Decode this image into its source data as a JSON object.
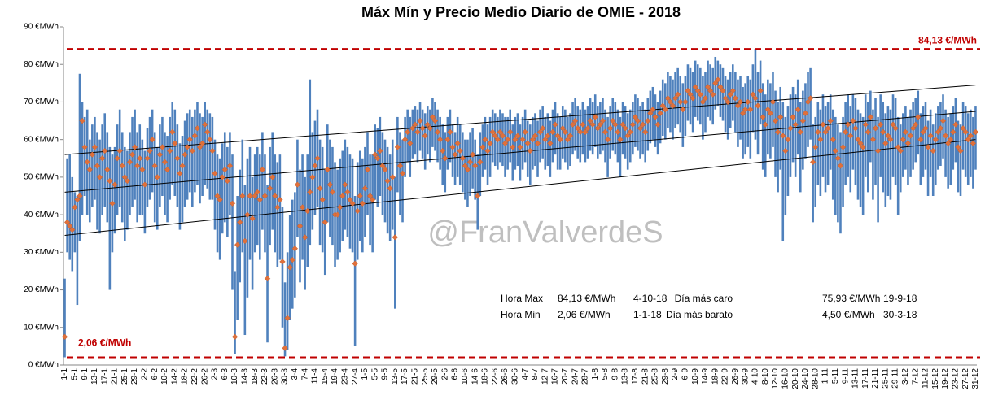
{
  "chart_data": {
    "type": "range-bar",
    "title": "Máx Mín y Precio Medio Diario de OMIE - 2018",
    "categories": [
      "1-1",
      null,
      null,
      null,
      "5-1",
      null,
      null,
      null,
      "9-1",
      null,
      null,
      null,
      "13-1",
      null,
      null,
      null,
      "17-1",
      null,
      null,
      null,
      "21-1",
      null,
      null,
      null,
      "25-1",
      null,
      null,
      null,
      "29-1",
      null,
      null,
      null,
      "2-2",
      null,
      null,
      null,
      "6-2",
      null,
      null,
      null,
      "10-2",
      null,
      null,
      null,
      "14-2",
      null,
      null,
      null,
      "18-2",
      null,
      null,
      null,
      "22-2",
      null,
      null,
      null,
      "26-2",
      null,
      null,
      null,
      "2-3",
      null,
      null,
      null,
      "6-3",
      null,
      null,
      null,
      "10-3",
      null,
      null,
      null,
      "14-3",
      null,
      null,
      null,
      "18-3",
      null,
      null,
      null,
      "22-3",
      null,
      null,
      null,
      "26-3",
      null,
      null,
      null,
      "30-3",
      null,
      null,
      null,
      "3-4",
      null,
      null,
      null,
      "7-4",
      null,
      null,
      null,
      "11-4",
      null,
      null,
      null,
      "15-4",
      null,
      null,
      null,
      "19-4",
      null,
      null,
      null,
      "23-4",
      null,
      null,
      null,
      "27-4",
      null,
      null,
      null,
      "1-5",
      null,
      null,
      null,
      "5-5",
      null,
      null,
      null,
      "9-5",
      null,
      null,
      null,
      "13-5",
      null,
      null,
      null,
      "17-5",
      null,
      null,
      null,
      "21-5",
      null,
      null,
      null,
      "25-5",
      null,
      null,
      null,
      "29-5",
      null,
      null,
      null,
      "2-6",
      null,
      null,
      null,
      "6-6",
      null,
      null,
      null,
      "10-6",
      null,
      null,
      null,
      "14-6",
      null,
      null,
      null,
      "18-6",
      null,
      null,
      null,
      "22-6",
      null,
      null,
      null,
      "26-6",
      null,
      null,
      null,
      "30-6",
      null,
      null,
      null,
      "4-7",
      null,
      null,
      null,
      "8-7",
      null,
      null,
      null,
      "12-7",
      null,
      null,
      null,
      "16-7",
      null,
      null,
      null,
      "20-7",
      null,
      null,
      null,
      "24-7",
      null,
      null,
      null,
      "28-7",
      null,
      null,
      null,
      "1-8",
      null,
      null,
      null,
      "5-8",
      null,
      null,
      null,
      "9-8",
      null,
      null,
      null,
      "13-8",
      null,
      null,
      null,
      "17-8",
      null,
      null,
      null,
      "21-8",
      null,
      null,
      null,
      "25-8",
      null,
      null,
      null,
      "29-8",
      null,
      null,
      null,
      "2-9",
      null,
      null,
      null,
      "6-9",
      null,
      null,
      null,
      "10-9",
      null,
      null,
      null,
      "14-9",
      null,
      null,
      null,
      "18-9",
      null,
      null,
      null,
      "22-9",
      null,
      null,
      null,
      "26-9",
      null,
      null,
      null,
      "30-9",
      null,
      null,
      null,
      "4-10",
      null,
      null,
      null,
      "8-10",
      null,
      null,
      null,
      "12-10",
      null,
      null,
      null,
      "16-10",
      null,
      null,
      null,
      "20-10",
      null,
      null,
      null,
      "24-10",
      null,
      null,
      null,
      "28-10",
      null,
      null,
      null,
      "1-11",
      null,
      null,
      null,
      "5-11",
      null,
      null,
      null,
      "9-11",
      null,
      null,
      null,
      "13-11",
      null,
      null,
      null,
      "17-11",
      null,
      null,
      null,
      "21-11",
      null,
      null,
      null,
      "25-11",
      null,
      null,
      null,
      "29-11",
      null,
      null,
      null,
      "3-12",
      null,
      null,
      null,
      "7-12",
      null,
      null,
      null,
      "11-12",
      null,
      null,
      null,
      "15-12",
      null,
      null,
      null,
      "19-12",
      null,
      null,
      null,
      "23-12",
      null,
      null,
      null,
      "27-12",
      null,
      null,
      null,
      "31-12"
    ],
    "ranges": {
      "color": "#4f81bd",
      "high": [
        23,
        55,
        56,
        50,
        46,
        45,
        77.5,
        70,
        66,
        68,
        60,
        64,
        66,
        62,
        60,
        64,
        67,
        62,
        58,
        56,
        58,
        64,
        68,
        62,
        58,
        57,
        62,
        66,
        68,
        62,
        64,
        60,
        57,
        63,
        66,
        68,
        62,
        58,
        64,
        66,
        62,
        61,
        66,
        70,
        68,
        64,
        59,
        61,
        65,
        67,
        68,
        66,
        68,
        70,
        67,
        66,
        70,
        68,
        67,
        66,
        60,
        56,
        55,
        59,
        62,
        58,
        62,
        56,
        25,
        45,
        52,
        60,
        48,
        55,
        58,
        50,
        56,
        58,
        56,
        62,
        56,
        48,
        58,
        62,
        56,
        54,
        56,
        42,
        22,
        30,
        40,
        44,
        46,
        60,
        52,
        56,
        50,
        56,
        76,
        62,
        65,
        68,
        60,
        58,
        52,
        64,
        60,
        58,
        54,
        52,
        55,
        57,
        60,
        58,
        56,
        55,
        45,
        54,
        57,
        55,
        58,
        62,
        56,
        56,
        64,
        63,
        66,
        62,
        60,
        58,
        56,
        60,
        50,
        66,
        62,
        60,
        66,
        68,
        66,
        68,
        69,
        68,
        70,
        68,
        67,
        69,
        68,
        71,
        70,
        68,
        66,
        64,
        62,
        66,
        68,
        64,
        62,
        66,
        64,
        62,
        60,
        60,
        62,
        63,
        60,
        56,
        62,
        64,
        66,
        64,
        66,
        68,
        67,
        66,
        68,
        67,
        66,
        66,
        68,
        64,
        66,
        67,
        64,
        66,
        68,
        65,
        64,
        66,
        67,
        65,
        68,
        69,
        66,
        67,
        65,
        68,
        70,
        67,
        66,
        69,
        68,
        66,
        67,
        70,
        71,
        69,
        68,
        70,
        68,
        69,
        71,
        70,
        72,
        69,
        70,
        71,
        68,
        66,
        69,
        71,
        70,
        68,
        66,
        70,
        69,
        67,
        68,
        70,
        72,
        71,
        69,
        70,
        68,
        71,
        73,
        74,
        72,
        70,
        73,
        76,
        75,
        78,
        77,
        76,
        78,
        79,
        77,
        75,
        77,
        80,
        79,
        78,
        81,
        80,
        79,
        77,
        78,
        81,
        80,
        79,
        82,
        81,
        80,
        79,
        77,
        76,
        78,
        80,
        78,
        76,
        77,
        74,
        75,
        77,
        76,
        80,
        84.13,
        78,
        81,
        75,
        72,
        76,
        75,
        78,
        73,
        70,
        74,
        70,
        66,
        69,
        72,
        74,
        72,
        76,
        70,
        73,
        75,
        78,
        79,
        64,
        66,
        70,
        68,
        72,
        69,
        70,
        72,
        68,
        66,
        64,
        62,
        66,
        70,
        72,
        69,
        72,
        71,
        68,
        67,
        66,
        72,
        70,
        73,
        68,
        71,
        66,
        72,
        70,
        67,
        69,
        68,
        72,
        71,
        66,
        64,
        67,
        69,
        66,
        68,
        70,
        71,
        73,
        67,
        69,
        70,
        65,
        68,
        64,
        67,
        69,
        70,
        72,
        68,
        66,
        67,
        69,
        71,
        65,
        64,
        70,
        69,
        67,
        68,
        66,
        69
      ],
      "low": [
        2.06,
        30,
        28,
        25,
        30,
        16,
        33,
        40,
        45,
        40,
        38,
        42,
        44,
        36,
        35,
        40,
        42,
        38,
        20,
        30,
        35,
        40,
        42,
        38,
        33,
        36,
        40,
        42,
        44,
        38,
        40,
        40,
        35,
        42,
        44,
        46,
        38,
        36,
        42,
        45,
        40,
        38,
        44,
        48,
        45,
        42,
        36,
        38,
        42,
        44,
        46,
        42,
        46,
        48,
        43,
        45,
        48,
        47,
        44,
        44,
        36,
        30,
        28,
        35,
        38,
        34,
        40,
        20,
        3,
        12,
        22,
        30,
        8,
        18,
        28,
        20,
        30,
        32,
        28,
        36,
        30,
        6,
        32,
        36,
        30,
        26,
        28,
        10,
        2.3,
        4,
        12,
        15,
        18,
        34,
        22,
        28,
        20,
        26,
        32,
        36,
        40,
        42,
        32,
        30,
        24,
        38,
        34,
        32,
        26,
        28,
        30,
        33,
        36,
        34,
        31,
        30,
        5,
        28,
        33,
        30,
        34,
        40,
        32,
        30,
        44,
        42,
        45,
        40,
        38,
        35,
        33,
        36,
        15,
        46,
        40,
        38,
        50,
        54,
        50,
        55,
        56,
        54,
        57,
        55,
        52,
        56,
        54,
        58,
        57,
        54,
        52,
        48,
        46,
        52,
        54,
        50,
        48,
        50,
        48,
        46,
        44,
        42,
        45,
        47,
        44,
        36,
        45,
        50,
        52,
        48,
        50,
        54,
        53,
        52,
        54,
        53,
        50,
        52,
        54,
        49,
        52,
        53,
        49,
        52,
        54,
        50,
        48,
        52,
        53,
        50,
        54,
        55,
        52,
        53,
        50,
        54,
        56,
        52,
        52,
        55,
        54,
        52,
        53,
        56,
        57,
        55,
        54,
        56,
        54,
        55,
        57,
        56,
        58,
        55,
        56,
        57,
        54,
        50,
        55,
        57,
        56,
        54,
        50,
        56,
        55,
        52,
        54,
        56,
        58,
        57,
        55,
        56,
        54,
        57,
        59,
        60,
        58,
        56,
        59,
        61,
        60,
        63,
        62,
        60,
        63,
        64,
        62,
        58,
        61,
        65,
        64,
        62,
        66,
        65,
        64,
        60,
        62,
        66,
        65,
        64,
        68,
        69,
        66,
        65,
        62,
        60,
        63,
        65,
        62,
        58,
        60,
        55,
        56,
        58,
        55,
        62,
        60,
        56,
        64,
        52,
        50,
        56,
        55,
        58,
        50,
        46,
        52,
        33,
        40,
        45,
        50,
        54,
        50,
        56,
        46,
        52,
        55,
        58,
        60,
        38,
        42,
        48,
        45,
        50,
        46,
        48,
        52,
        44,
        40,
        38,
        35,
        42,
        48,
        50,
        46,
        52,
        48,
        44,
        42,
        40,
        50,
        46,
        54,
        44,
        48,
        38,
        50,
        46,
        42,
        45,
        44,
        50,
        48,
        40,
        46,
        50,
        52,
        48,
        50,
        52,
        54,
        56,
        48,
        50,
        52,
        45,
        50,
        45,
        48,
        52,
        53,
        55,
        50,
        47,
        48,
        52,
        54,
        46,
        45,
        52,
        50,
        48,
        50,
        47,
        52
      ]
    },
    "mean": {
      "color": "#e0703a",
      "values": [
        7.5,
        38,
        37,
        36,
        42,
        44,
        45,
        65,
        58,
        54,
        52,
        56,
        58,
        53,
        50,
        55,
        57,
        52,
        49,
        43,
        48,
        55,
        57,
        53,
        50,
        49,
        54,
        56,
        58,
        53,
        55,
        52,
        48,
        55,
        57,
        60,
        53,
        50,
        56,
        58,
        54,
        52,
        57,
        62,
        59,
        55,
        51,
        53,
        56,
        58,
        60,
        57,
        61,
        63,
        58,
        59,
        64,
        62,
        60,
        57,
        51,
        45,
        44,
        50,
        52,
        49,
        53,
        43,
        7.5,
        32,
        38,
        45,
        33,
        40,
        45,
        39,
        45,
        46,
        44,
        52,
        45,
        23,
        47,
        50,
        45,
        42,
        44,
        27.5,
        4.5,
        12.5,
        26,
        28,
        31,
        48,
        37,
        42,
        34,
        41,
        46,
        50,
        53,
        55,
        47,
        44,
        38,
        52,
        48,
        46,
        40,
        40,
        42,
        45,
        48,
        46,
        44,
        43,
        27,
        41,
        45,
        43,
        47,
        52,
        45,
        44,
        56,
        55,
        57,
        53,
        52,
        49,
        47,
        50,
        34,
        58,
        53,
        51,
        60,
        62,
        59,
        63,
        64,
        62,
        65,
        63,
        61,
        64,
        63,
        66,
        65,
        62,
        60,
        57,
        55,
        60,
        62,
        58,
        56,
        59,
        57,
        55,
        53,
        52,
        54,
        56,
        53,
        45,
        54,
        58,
        60,
        57,
        59,
        62,
        61,
        60,
        62,
        61,
        59,
        60,
        62,
        58,
        60,
        61,
        58,
        60,
        62,
        59,
        57,
        60,
        61,
        59,
        62,
        63,
        60,
        61,
        59,
        62,
        64,
        61,
        60,
        63,
        62,
        60,
        61,
        64,
        65,
        63,
        62,
        64,
        62,
        63,
        65,
        64,
        66,
        63,
        64,
        65,
        62,
        60,
        63,
        65,
        64,
        62,
        60,
        64,
        63,
        61,
        62,
        64,
        66,
        65,
        63,
        64,
        62,
        65,
        67,
        68,
        66,
        64,
        67,
        69,
        68,
        71,
        70,
        69,
        71,
        72,
        70,
        68,
        70,
        73,
        72,
        71,
        74,
        73,
        72,
        70,
        71,
        74,
        73,
        72,
        75,
        75.93,
        74,
        73,
        71,
        70,
        72,
        73,
        71,
        69,
        70,
        67,
        68,
        70,
        68,
        72,
        71,
        69,
        73,
        66,
        64,
        68,
        67,
        70,
        65,
        62,
        66,
        61,
        57,
        60,
        63,
        66,
        64,
        68,
        62,
        65,
        67,
        70,
        71,
        54,
        58,
        62,
        60,
        64,
        62,
        63,
        65,
        60,
        57,
        55,
        53,
        58,
        62,
        64,
        61,
        65,
        63,
        60,
        59,
        58,
        64,
        62,
        66,
        60,
        63,
        57,
        64,
        62,
        59,
        61,
        60,
        64,
        63,
        58,
        57,
        60,
        62,
        59,
        61,
        63,
        64,
        66,
        60,
        62,
        63,
        58,
        61,
        57,
        60,
        62,
        63,
        65,
        61,
        59,
        60,
        62,
        64,
        58,
        57,
        63,
        62,
        60,
        61,
        59,
        62
      ]
    },
    "trendlines": [
      {
        "color": "#000000",
        "values": [
          56,
          74.5
        ]
      },
      {
        "color": "#000000",
        "values": [
          46,
          67.5
        ]
      },
      {
        "color": "#000000",
        "values": [
          34.5,
          60
        ]
      }
    ],
    "reference_lines": [
      {
        "value": 84.13,
        "label": "84,13 €/MWh",
        "color": "#c00000"
      },
      {
        "value": 2.06,
        "label": "2,06 €/MWh",
        "color": "#c00000"
      }
    ],
    "watermark": "@FranValverdeS",
    "stats": [
      [
        [
          "Hora Max",
          "84,13 €/MWh",
          "4-10-18"
        ],
        [
          "Hora Min",
          "2,06 €/MWh",
          "1-1-18"
        ]
      ],
      [
        [
          "Día más caro",
          "75,93 €/MWh",
          "19-9-18"
        ],
        [
          "Día más barato",
          "4,50 €/MWh",
          "30-3-18"
        ]
      ]
    ],
    "ylim": [
      0,
      90
    ],
    "yticks": [
      {
        "value": 0,
        "label": "0 €MWh"
      },
      {
        "value": 10,
        "label": "10 €MWh"
      },
      {
        "value": 20,
        "label": "20 €MWh"
      },
      {
        "value": 30,
        "label": "30 €MWh"
      },
      {
        "value": 40,
        "label": "40 €MWh"
      },
      {
        "value": 50,
        "label": "50 €MWh"
      },
      {
        "value": 60,
        "label": "60 €MWh"
      },
      {
        "value": 70,
        "label": "70 €MWh"
      },
      {
        "value": 80,
        "label": "80 €MWh"
      },
      {
        "value": 90,
        "label": "90 €MWh"
      }
    ]
  }
}
